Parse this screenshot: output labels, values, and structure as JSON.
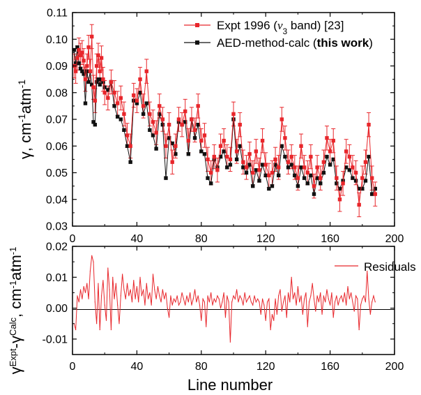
{
  "chart_data": [
    {
      "type": "scatter",
      "ylabel": "γ, cm⁻¹atm⁻¹",
      "xlim": [
        0,
        200
      ],
      "ylim": [
        0.03,
        0.11
      ],
      "x_ticks": [
        0,
        40,
        80,
        120,
        160,
        200
      ],
      "y_ticks": [
        0.03,
        0.04,
        0.05,
        0.06,
        0.07,
        0.08,
        0.09,
        0.1,
        0.11
      ],
      "y_tick_labels": [
        "0.03",
        "0.04",
        "0.05",
        "0.06",
        "0.07",
        "0.08",
        "0.09",
        "0.10",
        "0.11"
      ],
      "legend_placement": "top-right",
      "series": [
        {
          "name": "Expt 1996 (ν3 band) [23]",
          "legend": {
            "prefix": "Expt 1996 (",
            "nu": "ν",
            "sub": "3",
            "suffix": " band) [23]"
          },
          "color": "#e8262b",
          "marker": "square",
          "error_bars": true,
          "typical_error": 0.0045,
          "x": [
            1,
            2,
            3,
            4,
            5,
            6,
            7,
            8,
            9,
            10,
            11,
            12,
            13,
            14,
            15,
            16,
            17,
            18,
            19,
            20,
            22,
            24,
            26,
            28,
            30,
            32,
            34,
            36,
            38,
            40,
            42,
            44,
            46,
            48,
            50,
            52,
            54,
            56,
            58,
            60,
            62,
            64,
            66,
            68,
            70,
            72,
            74,
            76,
            78,
            80,
            82,
            84,
            86,
            88,
            90,
            92,
            94,
            96,
            98,
            100,
            102,
            104,
            106,
            108,
            110,
            112,
            114,
            116,
            118,
            120,
            122,
            124,
            126,
            128,
            130,
            132,
            134,
            136,
            138,
            140,
            142,
            144,
            146,
            148,
            150,
            152,
            154,
            156,
            158,
            160,
            162,
            164,
            166,
            168,
            170,
            172,
            174,
            176,
            178,
            180,
            182,
            184,
            186,
            188
          ],
          "y": [
            0.09,
            0.088,
            0.093,
            0.096,
            0.094,
            0.095,
            0.092,
            0.085,
            0.09,
            0.097,
            0.088,
            0.101,
            0.082,
            0.077,
            0.09,
            0.094,
            0.088,
            0.093,
            0.085,
            0.08,
            0.078,
            0.084,
            0.08,
            0.076,
            0.078,
            0.072,
            0.064,
            0.06,
            0.079,
            0.077,
            0.085,
            0.075,
            0.088,
            0.072,
            0.069,
            0.065,
            0.075,
            0.07,
            0.06,
            0.068,
            0.054,
            0.06,
            0.07,
            0.068,
            0.073,
            0.062,
            0.07,
            0.066,
            0.075,
            0.062,
            0.064,
            0.055,
            0.05,
            0.056,
            0.051,
            0.06,
            0.062,
            0.056,
            0.055,
            0.072,
            0.058,
            0.068,
            0.054,
            0.052,
            0.057,
            0.05,
            0.058,
            0.051,
            0.062,
            0.053,
            0.049,
            0.05,
            0.055,
            0.052,
            0.07,
            0.063,
            0.054,
            0.056,
            0.052,
            0.048,
            0.06,
            0.052,
            0.05,
            0.056,
            0.045,
            0.052,
            0.048,
            0.054,
            0.063,
            0.058,
            0.062,
            0.048,
            0.04,
            0.046,
            0.058,
            0.056,
            0.052,
            0.05,
            0.038,
            0.048,
            0.054,
            0.068,
            0.048,
            0.042
          ]
        },
        {
          "name": "AED-method-calc (this work)",
          "legend": {
            "prefix": "AED-method-calc (",
            "bold": "this work",
            "suffix": ")"
          },
          "color": "#111111",
          "marker": "square",
          "x": [
            1,
            2,
            3,
            4,
            5,
            6,
            7,
            8,
            9,
            10,
            11,
            12,
            13,
            14,
            15,
            16,
            17,
            18,
            19,
            20,
            22,
            24,
            26,
            28,
            30,
            32,
            34,
            36,
            38,
            40,
            42,
            44,
            46,
            48,
            50,
            52,
            54,
            56,
            58,
            60,
            62,
            64,
            66,
            68,
            70,
            72,
            74,
            76,
            78,
            80,
            82,
            84,
            86,
            88,
            90,
            92,
            94,
            96,
            98,
            100,
            102,
            104,
            106,
            108,
            110,
            112,
            114,
            116,
            118,
            120,
            122,
            124,
            126,
            128,
            130,
            132,
            134,
            136,
            138,
            140,
            142,
            144,
            146,
            148,
            150,
            152,
            154,
            156,
            158,
            160,
            162,
            164,
            166,
            168,
            170,
            172,
            174,
            176,
            178,
            180,
            182,
            184,
            186,
            188
          ],
          "y": [
            0.096,
            0.091,
            0.097,
            0.091,
            0.089,
            0.088,
            0.087,
            0.076,
            0.088,
            0.084,
            0.088,
            0.083,
            0.069,
            0.068,
            0.084,
            0.085,
            0.083,
            0.085,
            0.084,
            0.082,
            0.081,
            0.084,
            0.075,
            0.071,
            0.07,
            0.066,
            0.06,
            0.054,
            0.077,
            0.076,
            0.08,
            0.072,
            0.076,
            0.066,
            0.064,
            0.059,
            0.072,
            0.068,
            0.048,
            0.063,
            0.061,
            0.057,
            0.069,
            0.068,
            0.069,
            0.057,
            0.07,
            0.063,
            0.068,
            0.058,
            0.057,
            0.048,
            0.046,
            0.055,
            0.052,
            0.056,
            0.058,
            0.052,
            0.053,
            0.07,
            0.055,
            0.06,
            0.052,
            0.05,
            0.053,
            0.045,
            0.051,
            0.047,
            0.053,
            0.049,
            0.044,
            0.045,
            0.053,
            0.049,
            0.06,
            0.056,
            0.052,
            0.053,
            0.049,
            0.045,
            0.052,
            0.048,
            0.046,
            0.049,
            0.042,
            0.048,
            0.046,
            0.05,
            0.056,
            0.053,
            0.055,
            0.046,
            0.044,
            0.047,
            0.052,
            0.051,
            0.048,
            0.047,
            0.044,
            0.044,
            0.047,
            0.056,
            0.042,
            0.044
          ]
        }
      ]
    },
    {
      "type": "line",
      "xlabel": "Line number",
      "ylabel": "γ^Expt−γ^Calc, cm⁻¹atm⁻¹",
      "ylabel_parts": {
        "g1": "γ",
        "sup1": "Expt",
        "minus": "-",
        "g2": "γ",
        "sup2": "Calc",
        "units": ", cm",
        "sup3": "-1",
        "mid": "atm",
        "sup4": "-1"
      },
      "xlim": [
        0,
        200
      ],
      "ylim": [
        -0.015,
        0.02
      ],
      "x_ticks": [
        0,
        40,
        80,
        120,
        160,
        200
      ],
      "y_ticks": [
        -0.01,
        0.0,
        0.01,
        0.02
      ],
      "y_tick_labels": [
        "-0.01",
        "0.00",
        "0.01",
        "0.02"
      ],
      "zero_line": true,
      "legend_placement": "top-right",
      "series": [
        {
          "name": "Residuals",
          "color": "#e8262b",
          "x": [
            1,
            2,
            3,
            4,
            5,
            6,
            7,
            8,
            9,
            10,
            11,
            12,
            13,
            14,
            15,
            16,
            17,
            18,
            19,
            20,
            21,
            22,
            23,
            24,
            25,
            26,
            27,
            28,
            29,
            30,
            31,
            32,
            33,
            34,
            35,
            36,
            37,
            38,
            39,
            40,
            41,
            42,
            43,
            44,
            45,
            46,
            47,
            48,
            49,
            50,
            51,
            52,
            53,
            54,
            55,
            56,
            57,
            58,
            59,
            60,
            61,
            62,
            63,
            64,
            65,
            66,
            67,
            68,
            69,
            70,
            71,
            72,
            73,
            74,
            75,
            76,
            77,
            78,
            79,
            80,
            81,
            82,
            83,
            84,
            85,
            86,
            87,
            88,
            89,
            90,
            91,
            92,
            93,
            94,
            95,
            96,
            97,
            98,
            99,
            100,
            101,
            102,
            103,
            104,
            105,
            106,
            107,
            108,
            109,
            110,
            111,
            112,
            113,
            114,
            115,
            116,
            117,
            118,
            119,
            120,
            121,
            122,
            123,
            124,
            125,
            126,
            127,
            128,
            129,
            130,
            131,
            132,
            133,
            134,
            135,
            136,
            137,
            138,
            139,
            140,
            141,
            142,
            143,
            144,
            145,
            146,
            147,
            148,
            149,
            150,
            151,
            152,
            153,
            154,
            155,
            156,
            157,
            158,
            159,
            160,
            161,
            162,
            163,
            164,
            165,
            166,
            167,
            168,
            169,
            170,
            171,
            172,
            173,
            174,
            175,
            176,
            177,
            178,
            179,
            180,
            181,
            182,
            183,
            184,
            185,
            186,
            187,
            188
          ],
          "y": [
            -0.005,
            -0.007,
            0.004,
            0.002,
            0.006,
            0.003,
            0.007,
            0.005,
            0.008,
            0.003,
            0.012,
            0.017,
            0.015,
            0.002,
            -0.005,
            0.008,
            -0.007,
            0.004,
            0.009,
            0.001,
            -0.004,
            0.013,
            0.006,
            -0.007,
            0.01,
            0.003,
            0.008,
            0.001,
            -0.005,
            0.004,
            0.011,
            0.006,
            0.003,
            0.008,
            0.004,
            0.006,
            0.002,
            0.009,
            0.003,
            0.007,
            0.002,
            0.01,
            0.004,
            0.006,
            0.001,
            0.008,
            0.003,
            0.005,
            0.001,
            0.011,
            0.006,
            0.003,
            0.007,
            0.004,
            0.002,
            0.006,
            0.003,
            0.005,
            0.0,
            -0.003,
            0.004,
            0.001,
            0.003,
            0.002,
            0.004,
            0.001,
            0.002,
            0.005,
            0.003,
            0.001,
            0.004,
            0.002,
            0.005,
            0.001,
            0.003,
            0.006,
            0.002,
            0.004,
            0.001,
            -0.004,
            0.003,
            0.002,
            -0.006,
            0.004,
            0.002,
            0.005,
            0.001,
            0.003,
            0.002,
            0.004,
            0.003,
            0.0,
            0.002,
            0.005,
            -0.003,
            0.004,
            0.002,
            -0.011,
            0.002,
            0.004,
            0.003,
            0.006,
            0.002,
            0.004,
            0.003,
            0.001,
            0.005,
            0.002,
            0.003,
            0.004,
            0.002,
            0.001,
            0.004,
            0.002,
            0.003,
            0.002,
            -0.002,
            0.003,
            0.001,
            -0.004,
            0.002,
            0.003,
            -0.007,
            -0.002,
            -0.004,
            0.003,
            -0.002,
            0.004,
            0.006,
            -0.001,
            0.002,
            0.004,
            -0.003,
            0.005,
            0.002,
            0.01,
            0.003,
            0.005,
            0.001,
            0.007,
            0.002,
            0.004,
            -0.002,
            0.003,
            0.005,
            -0.006,
            0.002,
            0.004,
            0.008,
            0.003,
            -0.001,
            0.004,
            0.002,
            0.005,
            -0.002,
            0.004,
            0.002,
            0.006,
            0.003,
            0.001,
            0.005,
            -0.003,
            0.002,
            0.004,
            0.001,
            0.003,
            0.004,
            0.002,
            0.005,
            0.001,
            0.007,
            0.003,
            0.005,
            0.002,
            -0.001,
            0.004,
            0.003,
            -0.007,
            0.001,
            0.003,
            0.004,
            0.002,
            0.012,
            0.003,
            -0.002,
            0.002,
            0.004,
            0.002
          ]
        }
      ]
    }
  ]
}
